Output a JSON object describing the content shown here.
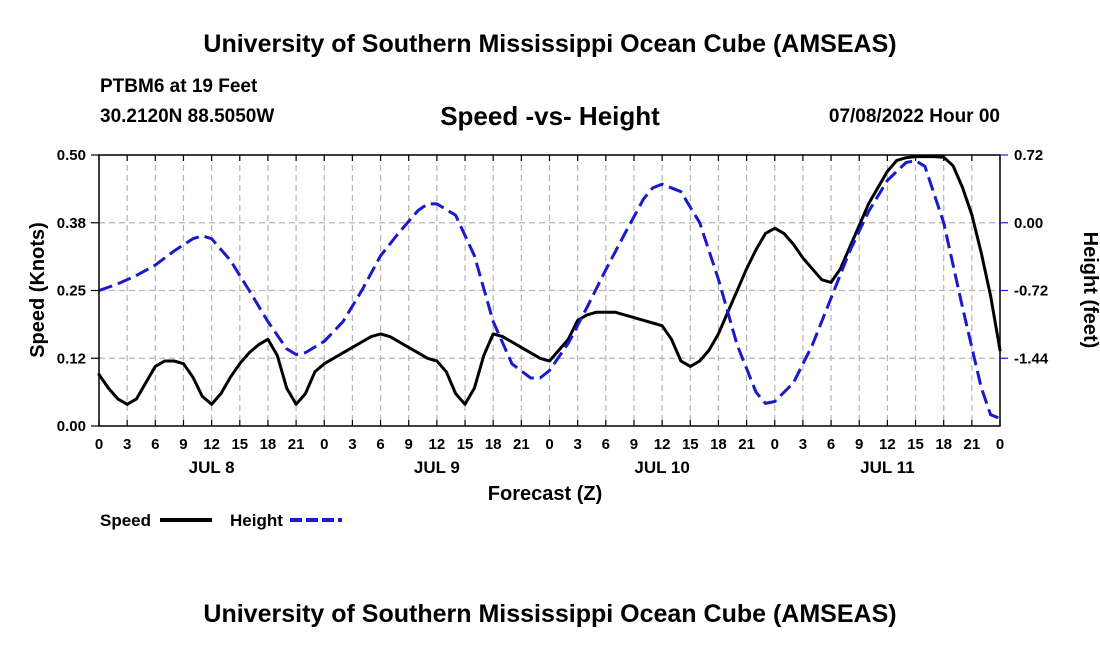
{
  "header": {
    "title": "University of Southern Mississippi Ocean Cube (AMSEAS)",
    "station": "PTBM6 at 19 Feet",
    "coords": "30.2120N  88.5050W",
    "subtitle": "Speed -vs- Height",
    "datetime": "07/08/2022 Hour 00"
  },
  "footer": {
    "title": "University of Southern Mississippi Ocean Cube (AMSEAS)"
  },
  "chart_data": {
    "type": "line",
    "title": "Speed -vs- Height",
    "xlabel": "Forecast (Z)",
    "ylabel": "Speed (Knots)",
    "y2label": "Height (feet)",
    "xlim": [
      0,
      96
    ],
    "ylim": [
      0,
      0.5
    ],
    "y2lim": [
      -2.16,
      0.72
    ],
    "x_tick_step_hours": 3,
    "x_tick_labels": [
      "0",
      "3",
      "6",
      "9",
      "12",
      "15",
      "18",
      "21",
      "0",
      "3",
      "6",
      "9",
      "12",
      "15",
      "18",
      "21",
      "0",
      "3",
      "6",
      "9",
      "12",
      "15",
      "18",
      "21",
      "0",
      "3",
      "6",
      "9",
      "12",
      "15",
      "18",
      "21",
      "0"
    ],
    "y_ticks": [
      "0.00",
      "0.12",
      "0.25",
      "0.38",
      "0.50"
    ],
    "y_tick_values": [
      0,
      0.125,
      0.25,
      0.375,
      0.5
    ],
    "y2_ticks": [
      "-1.44",
      "-0.72",
      "0.00",
      "0.72"
    ],
    "y2_tick_values": [
      -1.44,
      -0.72,
      0,
      0.72
    ],
    "days": [
      {
        "label": "JUL 8",
        "hour": 12
      },
      {
        "label": "JUL 9",
        "hour": 36
      },
      {
        "label": "JUL 10",
        "hour": 60
      },
      {
        "label": "JUL 11",
        "hour": 84
      }
    ],
    "grid": true,
    "legend": {
      "position": "bottom-left",
      "speed_label": "Speed",
      "height_label": "Height"
    },
    "series": [
      {
        "name": "Speed",
        "axis": "left",
        "color": "#000000",
        "dash": "solid",
        "x": [
          0,
          1,
          2,
          3,
          4,
          5,
          6,
          7,
          8,
          9,
          10,
          11,
          12,
          13,
          14,
          15,
          16,
          17,
          18,
          19,
          20,
          21,
          22,
          23,
          24,
          25,
          26,
          27,
          28,
          29,
          30,
          31,
          32,
          33,
          34,
          35,
          36,
          37,
          38,
          39,
          40,
          41,
          42,
          43,
          44,
          45,
          46,
          47,
          48,
          49,
          50,
          51,
          52,
          53,
          54,
          55,
          56,
          57,
          58,
          59,
          60,
          61,
          62,
          63,
          64,
          65,
          66,
          67,
          68,
          69,
          70,
          71,
          72,
          73,
          74,
          75,
          76,
          77,
          78,
          79,
          80,
          81,
          82,
          83,
          84,
          85,
          86,
          87,
          88,
          89,
          90,
          91,
          92,
          93,
          94,
          95,
          96
        ],
        "values": [
          0.095,
          0.07,
          0.05,
          0.04,
          0.05,
          0.08,
          0.11,
          0.12,
          0.12,
          0.115,
          0.09,
          0.055,
          0.04,
          0.06,
          0.09,
          0.115,
          0.135,
          0.15,
          0.16,
          0.13,
          0.07,
          0.04,
          0.06,
          0.1,
          0.115,
          0.125,
          0.135,
          0.145,
          0.155,
          0.165,
          0.17,
          0.165,
          0.155,
          0.145,
          0.135,
          0.125,
          0.12,
          0.1,
          0.06,
          0.04,
          0.07,
          0.13,
          0.17,
          0.165,
          0.155,
          0.145,
          0.135,
          0.125,
          0.12,
          0.14,
          0.16,
          0.195,
          0.205,
          0.21,
          0.21,
          0.21,
          0.205,
          0.2,
          0.195,
          0.19,
          0.185,
          0.16,
          0.12,
          0.11,
          0.12,
          0.14,
          0.17,
          0.21,
          0.25,
          0.29,
          0.325,
          0.355,
          0.365,
          0.355,
          0.335,
          0.31,
          0.29,
          0.27,
          0.265,
          0.29,
          0.33,
          0.37,
          0.41,
          0.44,
          0.47,
          0.49,
          0.495,
          0.497,
          0.497,
          0.497,
          0.496,
          0.48,
          0.44,
          0.39,
          0.32,
          0.24,
          0.14
        ]
      },
      {
        "name": "Height",
        "axis": "right",
        "color": "#1a1acc",
        "dash": "dashed",
        "x": [
          0,
          2,
          4,
          6,
          8,
          10,
          11,
          12,
          14,
          16,
          18,
          20,
          21,
          22,
          24,
          26,
          28,
          30,
          32,
          34,
          35,
          36,
          38,
          40,
          42,
          44,
          46,
          47,
          48,
          50,
          52,
          54,
          56,
          58,
          59,
          60,
          62,
          64,
          66,
          68,
          70,
          71,
          72,
          74,
          76,
          78,
          80,
          82,
          84,
          86,
          87,
          88,
          90,
          92,
          94,
          95,
          96
        ],
        "values": [
          -0.72,
          -0.65,
          -0.56,
          -0.45,
          -0.3,
          -0.17,
          -0.14,
          -0.17,
          -0.4,
          -0.72,
          -1.05,
          -1.34,
          -1.4,
          -1.38,
          -1.26,
          -1.05,
          -0.72,
          -0.35,
          -0.1,
          0.13,
          0.2,
          0.2,
          0.08,
          -0.35,
          -1.05,
          -1.5,
          -1.65,
          -1.65,
          -1.57,
          -1.28,
          -0.9,
          -0.5,
          -0.12,
          0.25,
          0.37,
          0.41,
          0.33,
          0.0,
          -0.6,
          -1.3,
          -1.8,
          -1.92,
          -1.9,
          -1.7,
          -1.3,
          -0.8,
          -0.3,
          0.12,
          0.45,
          0.64,
          0.66,
          0.6,
          0.0,
          -0.9,
          -1.75,
          -2.04,
          -2.08
        ]
      }
    ]
  }
}
